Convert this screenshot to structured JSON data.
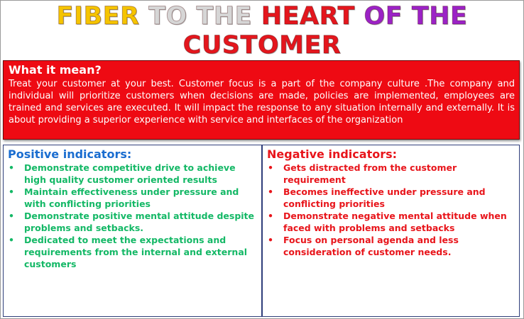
{
  "title": {
    "parts": [
      {
        "text": "FIBER",
        "color": "#f5c400"
      },
      {
        "text": "TO THE",
        "color": "#d6d6d6"
      },
      {
        "text": "HEART",
        "color": "#e4161d"
      },
      {
        "text": "OF THE",
        "color": "#9b22c6"
      },
      {
        "text": "CUSTOMER",
        "color": "#e4161d"
      }
    ]
  },
  "meaning": {
    "heading": "What it mean?",
    "body": "Treat your customer at your best. Customer focus is a part of the company culture .The company and individual will prioritize customers when decisions are made, policies are implemented, employees are trained and services are executed. It will impact the response to any situation internally and externally. It is about providing a superior experience with service and interfaces of the organization"
  },
  "positive": {
    "heading": "Positive indicators:",
    "bullet": "•",
    "items": [
      "Demonstrate competitive drive to achieve high quality customer oriented results",
      "Maintain effectiveness under pressure and with conflicting priorities",
      "Demonstrate positive mental attitude despite problems and setbacks.",
      "Dedicated to meet the expectations and requirements from the internal and external customers"
    ]
  },
  "negative": {
    "heading": "Negative indicators:",
    "bullet": "•",
    "items": [
      "Gets distracted from the customer requirement",
      "Becomes ineffective under pressure and conflicting priorities",
      "Demonstrate negative mental attitude when faced with problems and setbacks",
      "Focus on personal agenda and less consideration of customer needs."
    ]
  }
}
